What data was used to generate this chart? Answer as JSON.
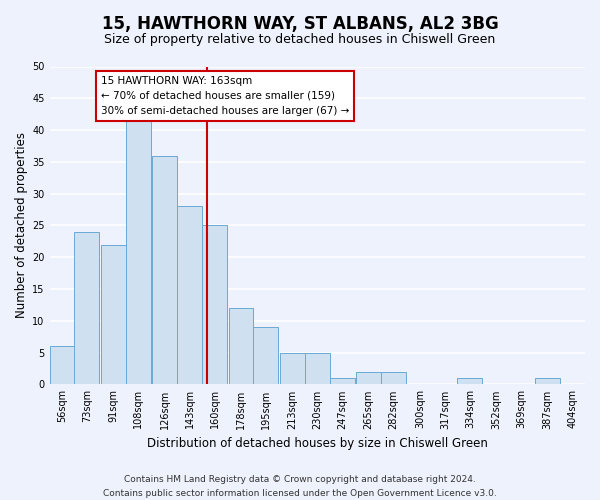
{
  "title": "15, HAWTHORN WAY, ST ALBANS, AL2 3BG",
  "subtitle": "Size of property relative to detached houses in Chiswell Green",
  "xlabel": "Distribution of detached houses by size in Chiswell Green",
  "ylabel": "Number of detached properties",
  "bin_labels": [
    "56sqm",
    "73sqm",
    "91sqm",
    "108sqm",
    "126sqm",
    "143sqm",
    "160sqm",
    "178sqm",
    "195sqm",
    "213sqm",
    "230sqm",
    "247sqm",
    "265sqm",
    "282sqm",
    "300sqm",
    "317sqm",
    "334sqm",
    "352sqm",
    "369sqm",
    "387sqm",
    "404sqm"
  ],
  "bin_edges": [
    56,
    73,
    91,
    108,
    126,
    143,
    160,
    178,
    195,
    213,
    230,
    247,
    265,
    282,
    300,
    317,
    334,
    352,
    369,
    387,
    404
  ],
  "counts": [
    6,
    24,
    22,
    42,
    36,
    28,
    25,
    12,
    9,
    5,
    5,
    1,
    2,
    2,
    0,
    0,
    1,
    0,
    0,
    1
  ],
  "bar_color": "#cfe0f0",
  "bar_edgecolor": "#6aaad4",
  "property_value": 163,
  "vline_color": "#cc0000",
  "annotation_line1": "15 HAWTHORN WAY: 163sqm",
  "annotation_line2": "← 70% of detached houses are smaller (159)",
  "annotation_line3": "30% of semi-detached houses are larger (67) →",
  "annotation_box_edgecolor": "#cc0000",
  "annotation_box_facecolor": "#ffffff",
  "ylim": [
    0,
    50
  ],
  "yticks": [
    0,
    5,
    10,
    15,
    20,
    25,
    30,
    35,
    40,
    45,
    50
  ],
  "footer_line1": "Contains HM Land Registry data © Crown copyright and database right 2024.",
  "footer_line2": "Contains public sector information licensed under the Open Government Licence v3.0.",
  "background_color": "#eef2fc",
  "grid_color": "#ffffff",
  "title_fontsize": 12,
  "subtitle_fontsize": 9,
  "axis_label_fontsize": 8.5,
  "tick_fontsize": 7,
  "footer_fontsize": 6.5
}
